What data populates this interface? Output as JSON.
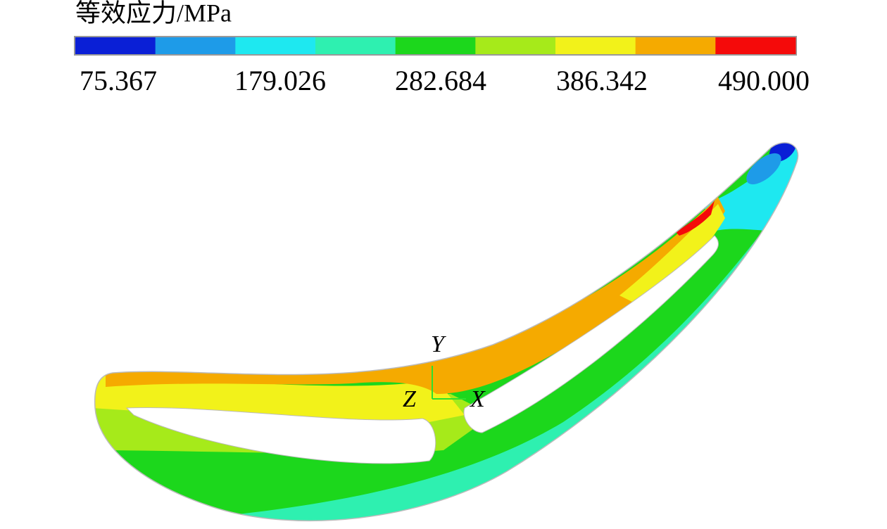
{
  "legend": {
    "title": "等效应力/MPa",
    "colors": [
      "#0a1fd6",
      "#1e9be8",
      "#1ee8f0",
      "#2ef0b0",
      "#1cd71c",
      "#a6ea1a",
      "#f2f21a",
      "#f5aa00",
      "#f50a0a"
    ],
    "tick_labels": [
      "75.367",
      "179.026",
      "282.684",
      "386.342",
      "490.000"
    ]
  },
  "axes": {
    "y": "Y",
    "z": "Z",
    "x": "X"
  }
}
